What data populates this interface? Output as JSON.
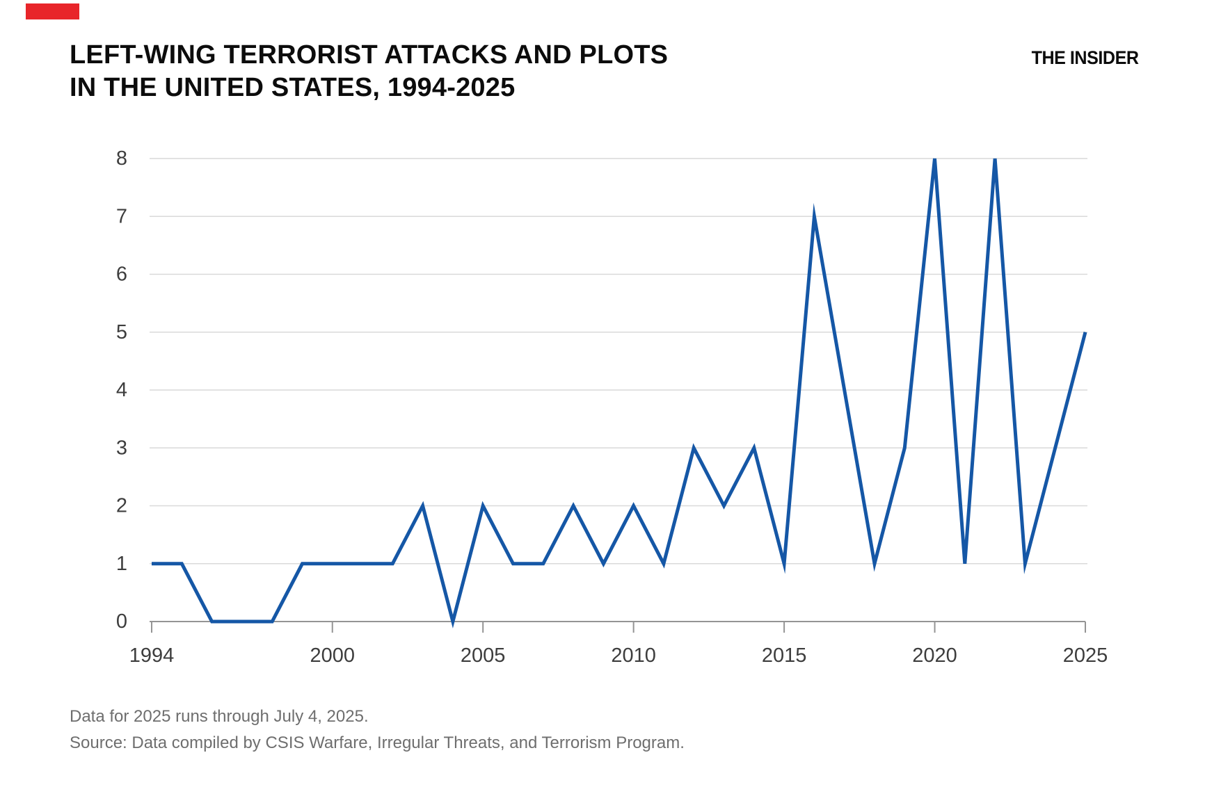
{
  "page": {
    "title_line1": "LEFT-WING TERRORIST ATTACKS AND PLOTS",
    "title_line2": "IN THE UNITED STATES, 1994-2025",
    "logo": "THE INSIDER",
    "footnote": "Data for 2025 runs through July 4, 2025.",
    "source": "Source: Data compiled by CSIS Warfare, Irregular Threats, and Terrorism Program."
  },
  "colors": {
    "line": "#1557a6",
    "grid": "#d9d9d9",
    "axis": "#949494",
    "tick_label": "#3d3d3d",
    "footer_text": "#6e6e6e",
    "brand_flag": "#e8252a",
    "title_text": "#0c0c0c"
  },
  "chart_data": {
    "type": "line",
    "title": "LEFT-WING TERRORIST ATTACKS AND PLOTS IN THE UNITED STATES, 1994-2025",
    "x": [
      1994,
      1995,
      1996,
      1997,
      1998,
      1999,
      2000,
      2001,
      2002,
      2003,
      2004,
      2005,
      2006,
      2007,
      2008,
      2009,
      2010,
      2011,
      2012,
      2013,
      2014,
      2015,
      2016,
      2017,
      2018,
      2019,
      2020,
      2021,
      2022,
      2023,
      2024,
      2025
    ],
    "values": [
      1,
      1,
      0,
      0,
      0,
      1,
      1,
      1,
      1,
      2,
      0,
      2,
      1,
      1,
      2,
      1,
      2,
      1,
      3,
      2,
      3,
      1,
      7,
      4,
      1,
      3,
      8,
      1,
      8,
      1,
      3,
      5
    ],
    "xticks": [
      1994,
      2000,
      2005,
      2010,
      2015,
      2020,
      2025
    ],
    "yticks": [
      0,
      1,
      2,
      3,
      4,
      5,
      6,
      7,
      8
    ],
    "xlim": [
      1994,
      2025
    ],
    "ylim": [
      0,
      8
    ],
    "xlabel": "",
    "ylabel": "",
    "grid": true,
    "legend_position": "none"
  }
}
